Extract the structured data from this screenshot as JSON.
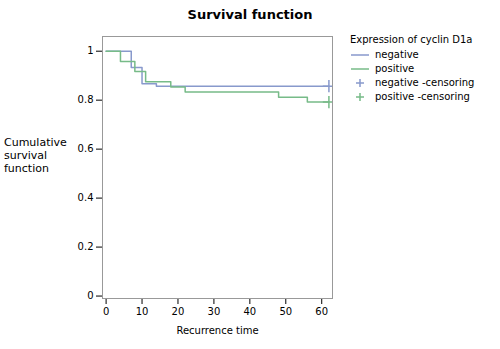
{
  "chart_data": {
    "type": "line",
    "title": "Survival function",
    "xlabel": "Recurrence time",
    "ylabel": "Cumulative\nsurvival\nfunction",
    "xlim": [
      -1,
      63
    ],
    "ylim": [
      -0.01,
      1.06
    ],
    "xticks": [
      0,
      10,
      20,
      30,
      40,
      50,
      60
    ],
    "yticks": [
      0,
      0.2,
      0.4,
      0.6,
      0.8,
      1
    ],
    "legend": "right",
    "legend_title": "Expression of cyclin D1a",
    "series": [
      {
        "name": "negative",
        "type": "step",
        "color": "#8899cc",
        "x": [
          0,
          7,
          7,
          10,
          10,
          14,
          14,
          62
        ],
        "values": [
          1.0,
          1.0,
          0.933,
          0.933,
          0.867,
          0.867,
          0.857,
          0.857
        ]
      },
      {
        "name": "positive",
        "type": "step",
        "color": "#77bb88",
        "x": [
          0,
          4,
          4,
          8,
          8,
          11,
          11,
          18,
          18,
          22,
          22,
          48,
          48,
          56,
          56,
          62
        ],
        "values": [
          1.0,
          1.0,
          0.958,
          0.958,
          0.917,
          0.917,
          0.875,
          0.875,
          0.854,
          0.854,
          0.833,
          0.833,
          0.812,
          0.812,
          0.792,
          0.792
        ]
      },
      {
        "name": "negative -censoring",
        "type": "scatter",
        "marker": "+",
        "color": "#8899cc",
        "x": [
          62
        ],
        "values": [
          0.857
        ]
      },
      {
        "name": "positive -censoring",
        "type": "scatter",
        "marker": "+",
        "color": "#77bb88",
        "x": [
          62
        ],
        "values": [
          0.792
        ]
      }
    ]
  }
}
